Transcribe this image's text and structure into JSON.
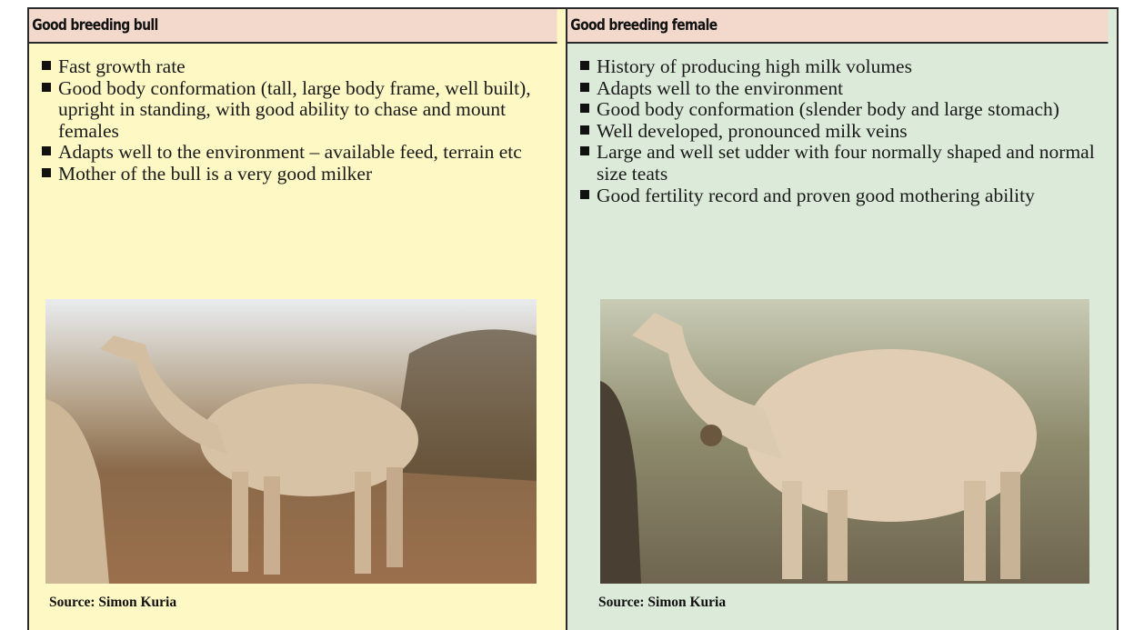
{
  "columns": [
    {
      "title": "Good breeding bull",
      "items": [
        "Fast growth rate",
        "Good body conformation (tall, large body frame, well built), upright in standing, with good ability to chase and mount females",
        "Adapts well to the environment – available feed, terrain etc",
        "Mother of the bull is a very good milker"
      ],
      "caption": "Source: Simon Kuria"
    },
    {
      "title": "Good breeding female",
      "items": [
        "History of producing high milk volumes",
        "Adapts well to the environment",
        "Good body conformation (slender body and large stomach)",
        "Well developed, pronounced milk veins",
        "Large and well set udder with four normally shaped and normal size teats",
        "Good fertility record and proven good mothering ability"
      ],
      "caption": "Source: Simon Kuria"
    }
  ]
}
